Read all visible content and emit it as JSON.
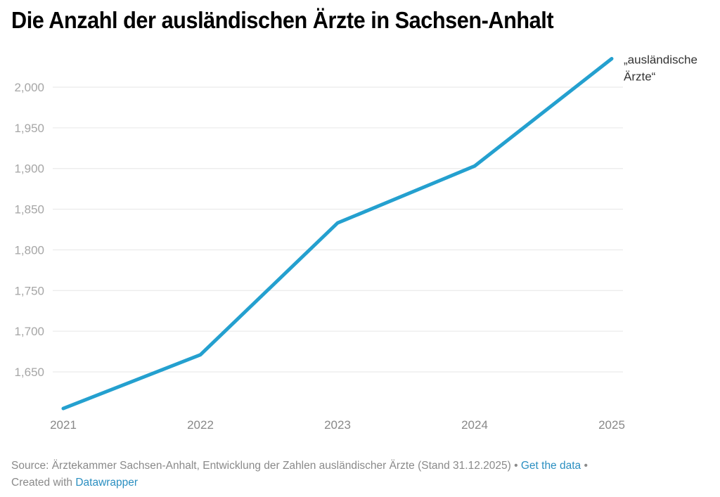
{
  "title": "Die Anzahl der ausländischen Ärzte in Sachsen-Anhalt",
  "footer": {
    "source_text": "Source: Ärztekammer Sachsen-Anhalt, Entwicklung der Zahlen ausländischer Ärzte (Stand 31.12.2025)",
    "separator": " • ",
    "get_data_label": "Get the data",
    "created_with_text": "Created with ",
    "datawrapper_label": "Datawrapper"
  },
  "colors": {
    "line": "#24a0cf",
    "link": "#2b8fc1"
  },
  "chart_data": {
    "type": "line",
    "title": "Die Anzahl der ausländischen Ärzte in Sachsen-Anhalt",
    "xlabel": "",
    "ylabel": "",
    "x": [
      "2021",
      "2022",
      "2023",
      "2024",
      "2025"
    ],
    "series": [
      {
        "name": "„ausländische Ärzte“",
        "label_lines": [
          "„ausländische",
          "Ärzte“"
        ],
        "values": [
          1605,
          1671,
          1833,
          1903,
          2035
        ]
      }
    ],
    "ylim": [
      1600,
      2035
    ],
    "yticks": [
      1650,
      1700,
      1750,
      1800,
      1850,
      1900,
      1950,
      2000
    ],
    "ytick_labels": [
      "1,650",
      "1,700",
      "1,750",
      "1,800",
      "1,850",
      "1,900",
      "1,950",
      "2,000"
    ],
    "grid": true,
    "legend": "direct label at line end (top-right)"
  }
}
